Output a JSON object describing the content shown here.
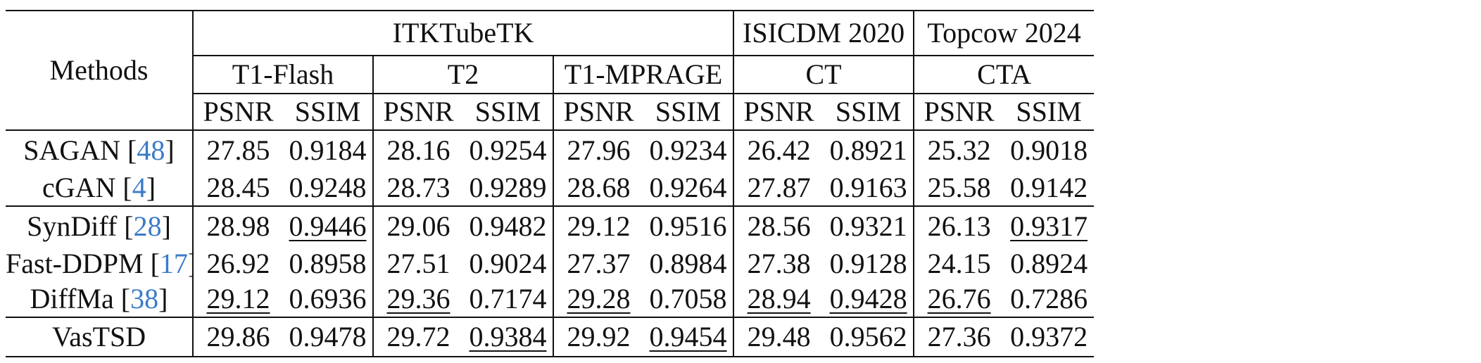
{
  "header": {
    "methods_label": "Methods",
    "datasets": [
      "ITKTubeTK",
      "ISICDM 2020",
      "Topcow 2024"
    ],
    "modalities": [
      "T1-Flash",
      "T2",
      "T1-MPRAGE",
      "CT",
      "CTA"
    ],
    "metrics": [
      "PSNR",
      "SSIM",
      "PSNR",
      "SSIM",
      "PSNR",
      "SSIM",
      "PSNR",
      "SSIM",
      "PSNR",
      "SSIM"
    ]
  },
  "rows": [
    {
      "method": "SAGAN [",
      "cite": "48",
      "close": "]",
      "values": [
        "27.85",
        "0.9184",
        "28.16",
        "0.9254",
        "27.96",
        "0.9234",
        "26.42",
        "0.8921",
        "25.32",
        "0.9018"
      ]
    },
    {
      "method": "cGAN [",
      "cite": "4",
      "close": "]",
      "values": [
        "28.45",
        "0.9248",
        "28.73",
        "0.9289",
        "28.68",
        "0.9264",
        "27.87",
        "0.9163",
        "25.58",
        "0.9142"
      ]
    },
    {
      "method": "SynDiff [",
      "cite": "28",
      "close": "]",
      "values": [
        "28.98",
        "0.9446",
        "29.06",
        "0.9482",
        "29.12",
        "0.9516",
        "28.56",
        "0.9321",
        "26.13",
        "0.9317"
      ]
    },
    {
      "method": "Fast-DDPM [",
      "cite": "17",
      "close": "]",
      "values": [
        "26.92",
        "0.8958",
        "27.51",
        "0.9024",
        "27.37",
        "0.8984",
        "27.38",
        "0.9128",
        "24.15",
        "0.8924"
      ]
    },
    {
      "method": "DiffMa [",
      "cite": "38",
      "close": "]",
      "values": [
        "29.12",
        "0.6936",
        "29.36",
        "0.7174",
        "29.28",
        "0.7058",
        "28.94",
        "0.9428",
        "26.76",
        "0.7286"
      ]
    },
    {
      "method": "VasTSD",
      "values": [
        "29.86",
        "0.9478",
        "29.72",
        "0.9384",
        "29.92",
        "0.9454",
        "29.48",
        "0.9562",
        "27.36",
        "0.9372"
      ]
    }
  ]
}
